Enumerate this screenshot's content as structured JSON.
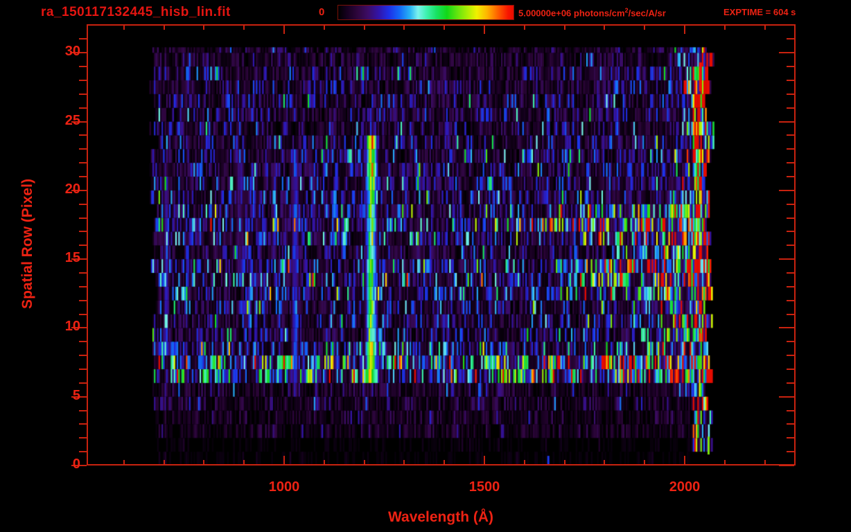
{
  "header": {
    "title": "ra_150117132445_hisb_lin.fit",
    "colorbar_min_label": "0",
    "colorbar_max_prefix": "5.00000e+06 photons/cm",
    "colorbar_max_sup": "2",
    "colorbar_max_suffix": "/sec/A/sr",
    "exptime_label": "EXPTIME = 604 s"
  },
  "colors": {
    "background": "#000000",
    "text": "#ed2213",
    "axis": "#c9220f",
    "colorbar_border": "#7b1108"
  },
  "chart_data": {
    "type": "heatmap",
    "title": "ra_150117132445_hisb_lin.fit",
    "xlabel": "Wavelength (Å)",
    "ylabel": "Spatial Row (Pixel)",
    "xlim": [
      507,
      2277
    ],
    "ylim": [
      0,
      32.1
    ],
    "x_ticks_major": [
      1000,
      1500,
      2000
    ],
    "x_minor_ticks": [
      600,
      700,
      800,
      900,
      1100,
      1200,
      1300,
      1400,
      1600,
      1700,
      1800,
      1900,
      2100,
      2200
    ],
    "y_ticks_major": [
      0,
      5,
      10,
      15,
      20,
      25,
      30
    ],
    "y_minor_step": 1,
    "grid": false,
    "colorbar": {
      "min": 0,
      "max": 5000000,
      "units": "photons/cm^2/sec/A/sr"
    },
    "exposure_time_s": 604,
    "colormap_stops": [
      [
        0.0,
        "#000000"
      ],
      [
        0.05,
        "#16001f"
      ],
      [
        0.11,
        "#2e063c"
      ],
      [
        0.17,
        "#3c0c66"
      ],
      [
        0.23,
        "#3214a8"
      ],
      [
        0.29,
        "#1e30e8"
      ],
      [
        0.35,
        "#1368f8"
      ],
      [
        0.41,
        "#28b4f4"
      ],
      [
        0.455,
        "#7cf2ee"
      ],
      [
        0.5,
        "#42f2b4"
      ],
      [
        0.56,
        "#18e264"
      ],
      [
        0.62,
        "#12d818"
      ],
      [
        0.68,
        "#64e40e"
      ],
      [
        0.74,
        "#aeee04"
      ],
      [
        0.79,
        "#f0f000"
      ],
      [
        0.85,
        "#ffb400"
      ],
      [
        0.91,
        "#ff6000"
      ],
      [
        0.97,
        "#f81400"
      ],
      [
        1.0,
        "#e80c00"
      ]
    ],
    "data_extent": {
      "lambda": [
        668,
        2075
      ],
      "rows": [
        0,
        30.4
      ]
    },
    "noise_seed": 1150117,
    "row_bands": [
      {
        "rows": [
          0,
          2.5
        ],
        "base": 0.015
      },
      {
        "rows": [
          2.5,
          3.6
        ],
        "base": 0.06
      },
      {
        "rows": [
          3.6,
          5.6
        ],
        "base": 0.09
      },
      {
        "rows": [
          5.6,
          8.2
        ],
        "base": 0.34,
        "ramp": {
          "start": 1500,
          "amp": 0.35
        }
      },
      {
        "rows": [
          8.2,
          9.3
        ],
        "base": 0.22,
        "ramp": {
          "start": 1800,
          "amp": 0.35
        }
      },
      {
        "rows": [
          9.3,
          12.2
        ],
        "base": 0.16,
        "ramp": {
          "start": 1850,
          "amp": 0.45
        }
      },
      {
        "rows": [
          12.2,
          13.2
        ],
        "base": 0.19,
        "ramp": {
          "start": 1700,
          "amp": 0.4
        }
      },
      {
        "rows": [
          13.2,
          15.0
        ],
        "base": 0.21,
        "ramp": {
          "start": 1650,
          "amp": 0.55
        }
      },
      {
        "rows": [
          15.0,
          16.1
        ],
        "base": 0.14,
        "ramp": {
          "start": 1800,
          "amp": 0.42
        }
      },
      {
        "rows": [
          16.1,
          17.2
        ],
        "base": 0.2,
        "ramp": {
          "start": 1600,
          "amp": 0.55
        }
      },
      {
        "rows": [
          17.2,
          18.3
        ],
        "base": 0.24,
        "ramp": {
          "start": 1430,
          "amp": 0.55
        }
      },
      {
        "rows": [
          18.3,
          19.3
        ],
        "base": 0.19,
        "ramp": {
          "start": 1600,
          "amp": 0.38
        }
      },
      {
        "rows": [
          19.3,
          21.2
        ],
        "base": 0.17,
        "ramp": {
          "start": 1900,
          "amp": 0.28
        }
      },
      {
        "rows": [
          21.2,
          24.2
        ],
        "base": 0.16,
        "ramp": {
          "start": 1950,
          "amp": 0.22
        }
      },
      {
        "rows": [
          24.2,
          29.2
        ],
        "base": 0.13,
        "ramp": {
          "start": 1950,
          "amp": 0.25
        }
      },
      {
        "rows": [
          29.2,
          31.0
        ],
        "base": 0.09,
        "ramp": {
          "start": 1950,
          "amp": 0.2
        }
      }
    ],
    "emission_lines": [
      {
        "lambda": 1216,
        "sigma": 9,
        "rows": [
          5.6,
          24.0
        ],
        "amp": 0.62,
        "hot": [
          {
            "rows": [
              5.7,
              8.6
            ],
            "amp": 0.9
          },
          {
            "rows": [
              19.6,
              24.0
            ],
            "amp": 0.82
          }
        ]
      },
      {
        "lambda": 1026,
        "sigma": 6,
        "rows": [
          6.0,
          23.0
        ],
        "amp": 0.3
      },
      {
        "lambda": 974,
        "sigma": 5,
        "rows": [
          16.5,
          21.5
        ],
        "amp": 0.24
      },
      {
        "lambda": 888,
        "sigma": 8,
        "rows": [
          14.0,
          23.0
        ],
        "amp": 0.2
      },
      {
        "lambda": 704,
        "sigma": 5,
        "rows": [
          8.0,
          20.5
        ],
        "amp": 0.26
      }
    ],
    "edge_band": {
      "start": 2020,
      "amp_default": 0.45,
      "amp_by_rows": [
        {
          "rows": [
            3.8,
            8.2
          ],
          "amp": 0.62
        },
        {
          "rows": [
            8.2,
            12.0
          ],
          "amp": 0.55
        },
        {
          "rows": [
            12.0,
            18.5
          ],
          "amp": 0.55
        },
        {
          "rows": [
            24.0,
            30.5
          ],
          "amp": 0.5
        }
      ]
    },
    "spikes": [
      {
        "lambda": 2036,
        "rows": [
          27.2,
          29.3
        ],
        "value": 0.97,
        "width": 4
      },
      {
        "lambda": 2037,
        "rows": [
          9.0,
          9.6
        ],
        "value": 0.93,
        "width": 3
      },
      {
        "lambda": 1657,
        "rows": [
          0.0,
          0.7
        ],
        "value": 0.3,
        "width": 3
      },
      {
        "lambda": 2057,
        "rows": [
          0.8,
          2.1
        ],
        "value": 0.7,
        "width": 3
      }
    ]
  }
}
